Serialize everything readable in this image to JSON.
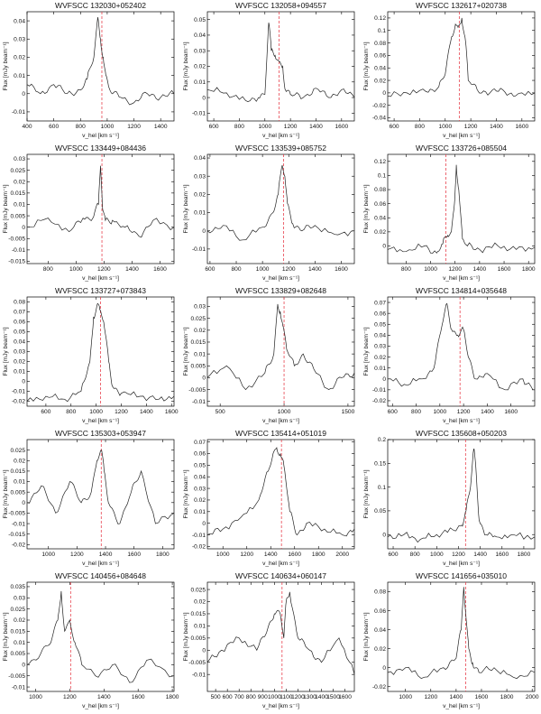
{
  "figure": {
    "ylabel": "Flux [mJy beam⁻¹]",
    "xlabel": "v_hel [km s⁻¹]"
  },
  "chart_data": [
    {
      "type": "line",
      "title": "WVFSCC 132030+052402",
      "xlim": [
        400,
        1500
      ],
      "ylim": [
        -0.015,
        0.045
      ],
      "xticks": [
        400,
        600,
        800,
        1000,
        1200,
        1400
      ],
      "yticks": [
        -0.01,
        0,
        0.01,
        0.02,
        0.03,
        0.04
      ],
      "ytick_labels": [
        "-0.01",
        "0",
        "0.01",
        "0.02",
        "0.03",
        "0.04"
      ],
      "vline": 960,
      "x": [
        400,
        500,
        600,
        700,
        800,
        850,
        900,
        930,
        950,
        970,
        990,
        1010,
        1040,
        1100,
        1200,
        1300,
        1400,
        1500
      ],
      "y": [
        0.005,
        0,
        0.005,
        0,
        0.002,
        0.008,
        0.02,
        0.042,
        0.03,
        0.02,
        0.01,
        0.004,
        0,
        -0.002,
        -0.005,
        0,
        -0.002,
        0
      ]
    },
    {
      "type": "line",
      "title": "WVFSCC 132058+094557",
      "xlim": [
        550,
        1700
      ],
      "ylim": [
        -0.015,
        0.055
      ],
      "xticks": [
        600,
        800,
        1000,
        1200,
        1400,
        1600
      ],
      "yticks": [
        -0.01,
        0,
        0.01,
        0.02,
        0.03,
        0.04,
        0.05
      ],
      "ytick_labels": [
        "-0.01",
        "0",
        "0.01",
        "0.02",
        "0.03",
        "0.04",
        "0.05"
      ],
      "vline": 1110,
      "x": [
        550,
        700,
        850,
        950,
        1000,
        1030,
        1050,
        1080,
        1110,
        1140,
        1160,
        1200,
        1300,
        1400,
        1500,
        1600,
        1700
      ],
      "y": [
        0.005,
        0.003,
        -0.002,
        0,
        0.002,
        0.048,
        0.03,
        0.027,
        0.023,
        0.02,
        0.005,
        0.002,
        0,
        0.006,
        0,
        0.005,
        0
      ]
    },
    {
      "type": "line",
      "title": "WVFSCC 132617+020738",
      "xlim": [
        550,
        1700
      ],
      "ylim": [
        -0.045,
        0.13
      ],
      "xticks": [
        600,
        800,
        1000,
        1200,
        1400,
        1600
      ],
      "yticks": [
        -0.04,
        -0.02,
        0,
        0.02,
        0.04,
        0.06,
        0.08,
        0.1,
        0.12
      ],
      "ytick_labels": [
        "-0.04",
        "-0.02",
        "0",
        "0.02",
        "0.04",
        "0.06",
        "0.08",
        "0.1",
        "0.12"
      ],
      "vline": 1110,
      "x": [
        550,
        700,
        850,
        950,
        1000,
        1050,
        1080,
        1100,
        1130,
        1160,
        1180,
        1250,
        1350,
        1450,
        1550,
        1700
      ],
      "y": [
        -0.005,
        0,
        0.002,
        0.01,
        0.03,
        0.09,
        0.11,
        0.105,
        0.12,
        0.08,
        0.02,
        0.005,
        0,
        0.005,
        -0.005,
        0
      ]
    },
    {
      "type": "line",
      "title": "WVFSCC 133449+084436",
      "xlim": [
        650,
        1700
      ],
      "ylim": [
        -0.016,
        0.032
      ],
      "xticks": [
        800,
        1000,
        1200,
        1400,
        1600
      ],
      "yticks": [
        -0.015,
        -0.01,
        -0.005,
        0,
        0.005,
        0.01,
        0.015,
        0.02,
        0.025,
        0.03
      ],
      "ytick_labels": [
        "-0.015",
        "-0.01",
        "-0.005",
        "0",
        "0.005",
        "0.01",
        "0.015",
        "0.02",
        "0.025",
        "0.03"
      ],
      "vline": 1185,
      "x": [
        650,
        800,
        950,
        1050,
        1120,
        1160,
        1175,
        1190,
        1210,
        1260,
        1350,
        1450,
        1550,
        1700
      ],
      "y": [
        0,
        0.004,
        -0.002,
        0.004,
        0.004,
        0.01,
        0.027,
        0.008,
        0.003,
        0.003,
        0,
        -0.004,
        0.003,
        0
      ]
    },
    {
      "type": "line",
      "title": "WVFSCC 133539+085752",
      "xlim": [
        580,
        1700
      ],
      "ylim": [
        -0.018,
        0.042
      ],
      "xticks": [
        600,
        800,
        1000,
        1200,
        1400,
        1600
      ],
      "yticks": [
        -0.01,
        0,
        0.01,
        0.02,
        0.03,
        0.04
      ],
      "ytick_labels": [
        "-0.01",
        "0",
        "0.01",
        "0.02",
        "0.03",
        "0.04"
      ],
      "vline": 1160,
      "x": [
        580,
        700,
        850,
        1000,
        1080,
        1120,
        1150,
        1170,
        1190,
        1230,
        1300,
        1400,
        1550,
        1700
      ],
      "y": [
        0,
        0.003,
        -0.005,
        0.002,
        0.01,
        0.02,
        0.036,
        0.03,
        0.015,
        0.004,
        0,
        0.003,
        -0.002,
        0
      ]
    },
    {
      "type": "line",
      "title": "WVFSCC 133726+085504",
      "xlim": [
        650,
        1850
      ],
      "ylim": [
        -0.025,
        0.13
      ],
      "xticks": [
        800,
        1000,
        1200,
        1400,
        1600,
        1800
      ],
      "yticks": [
        0,
        0.02,
        0.04,
        0.06,
        0.08,
        0.1,
        0.12
      ],
      "ytick_labels": [
        "0",
        "0.02",
        "0.04",
        "0.06",
        "0.08",
        "0.1",
        "0.12"
      ],
      "vline": 1125,
      "x": [
        650,
        800,
        950,
        1050,
        1100,
        1140,
        1170,
        1195,
        1210,
        1230,
        1260,
        1300,
        1400,
        1550,
        1700,
        1850
      ],
      "y": [
        -0.005,
        -0.008,
        0,
        -0.01,
        0.003,
        0.015,
        0.02,
        0.06,
        0.115,
        0.08,
        0.01,
        0,
        -0.005,
        0,
        -0.005,
        -0.002
      ]
    },
    {
      "type": "line",
      "title": "WVFSCC 133727+073843",
      "xlim": [
        450,
        1620
      ],
      "ylim": [
        -0.025,
        0.085
      ],
      "xticks": [
        600,
        800,
        1000,
        1200,
        1400,
        1600
      ],
      "yticks": [
        -0.02,
        -0.01,
        0,
        0.01,
        0.02,
        0.03,
        0.04,
        0.05,
        0.06,
        0.07,
        0.08
      ],
      "ytick_labels": [
        "-0.02",
        "-0.01",
        "0",
        "0.01",
        "0.02",
        "0.03",
        "0.04",
        "0.05",
        "0.06",
        "0.07",
        "0.08"
      ],
      "vline": 1035,
      "x": [
        450,
        600,
        750,
        880,
        950,
        980,
        1010,
        1030,
        1060,
        1100,
        1130,
        1200,
        1350,
        1500,
        1620
      ],
      "y": [
        -0.02,
        -0.015,
        -0.018,
        -0.01,
        0.02,
        0.065,
        0.078,
        0.072,
        0.06,
        0.02,
        -0.005,
        -0.012,
        -0.015,
        -0.018,
        -0.015
      ]
    },
    {
      "type": "line",
      "title": "WVFSCC 133829+082648",
      "xlim": [
        400,
        1550
      ],
      "ylim": [
        -0.012,
        0.034
      ],
      "xticks": [
        500,
        1000,
        1500
      ],
      "yticks": [
        -0.01,
        -0.005,
        0,
        0.005,
        0.01,
        0.015,
        0.02,
        0.025,
        0.03
      ],
      "ytick_labels": [
        "-0.01",
        "-0.005",
        "0",
        "0.005",
        "0.01",
        "0.015",
        "0.02",
        "0.025",
        "0.03"
      ],
      "vline": 1000,
      "x": [
        400,
        550,
        700,
        850,
        920,
        950,
        970,
        990,
        1020,
        1080,
        1150,
        1250,
        1350,
        1450,
        1550
      ],
      "y": [
        0,
        0.005,
        -0.005,
        0.002,
        0.01,
        0.031,
        0.028,
        0.022,
        0.012,
        0.005,
        0.01,
        0.002,
        -0.005,
        0,
        0.002
      ]
    },
    {
      "type": "line",
      "title": "WVFSCC 134814+035648",
      "xlim": [
        560,
        1800
      ],
      "ylim": [
        -0.025,
        0.075
      ],
      "xticks": [
        600,
        800,
        1000,
        1200,
        1400,
        1600
      ],
      "yticks": [
        -0.02,
        -0.01,
        0,
        0.01,
        0.02,
        0.03,
        0.04,
        0.05,
        0.06,
        0.07
      ],
      "ytick_labels": [
        "-0.02",
        "-0.01",
        "0",
        "0.01",
        "0.02",
        "0.03",
        "0.04",
        "0.05",
        "0.06",
        "0.07"
      ],
      "vline": 1170,
      "x": [
        560,
        700,
        850,
        950,
        1020,
        1060,
        1100,
        1150,
        1200,
        1240,
        1300,
        1400,
        1550,
        1700,
        1800
      ],
      "y": [
        0,
        -0.005,
        0,
        0.01,
        0.05,
        0.069,
        0.045,
        0.04,
        0.045,
        0.02,
        0,
        0.005,
        -0.01,
        0,
        -0.01
      ]
    },
    {
      "type": "line",
      "title": "WVFSCC 135303+053947",
      "xlim": [
        850,
        1880
      ],
      "ylim": [
        -0.022,
        0.03
      ],
      "xticks": [
        1000,
        1200,
        1400,
        1600,
        1800
      ],
      "yticks": [
        -0.02,
        -0.015,
        -0.01,
        -0.005,
        0,
        0.005,
        0.01,
        0.015,
        0.02,
        0.025
      ],
      "ytick_labels": [
        "-0.02",
        "-0.015",
        "-0.01",
        "-0.005",
        "0",
        "0.005",
        "0.01",
        "0.015",
        "0.02",
        "0.025"
      ],
      "vline": 1370,
      "x": [
        850,
        950,
        1050,
        1150,
        1230,
        1300,
        1340,
        1370,
        1390,
        1420,
        1500,
        1580,
        1650,
        1750,
        1880
      ],
      "y": [
        0,
        0.008,
        -0.005,
        0.01,
        0,
        0.005,
        0.02,
        0.025,
        0.015,
        0,
        -0.01,
        0.005,
        0.015,
        -0.01,
        -0.005
      ]
    },
    {
      "type": "line",
      "title": "WVFSCC 135414+051019",
      "xlim": [
        870,
        2100
      ],
      "ylim": [
        -0.022,
        0.072
      ],
      "xticks": [
        1000,
        1200,
        1400,
        1600,
        1800,
        2000
      ],
      "yticks": [
        -0.02,
        -0.01,
        0,
        0.01,
        0.02,
        0.03,
        0.04,
        0.05,
        0.06,
        0.07
      ],
      "ytick_labels": [
        "-0.02",
        "-0.01",
        "0",
        "0.01",
        "0.02",
        "0.03",
        "0.04",
        "0.05",
        "0.06",
        "0.07"
      ],
      "vline": 1490,
      "x": [
        870,
        1000,
        1150,
        1300,
        1380,
        1420,
        1450,
        1480,
        1510,
        1560,
        1620,
        1700,
        1850,
        2000,
        2100
      ],
      "y": [
        -0.01,
        -0.005,
        0.005,
        0.02,
        0.045,
        0.06,
        0.065,
        0.06,
        0.05,
        0.01,
        -0.01,
        0,
        -0.005,
        -0.01,
        -0.005
      ]
    },
    {
      "type": "line",
      "title": "WVFSCC 135608+050203",
      "xlim": [
        550,
        1900
      ],
      "ylim": [
        -0.03,
        0.2
      ],
      "xticks": [
        600,
        800,
        1000,
        1200,
        1400,
        1600,
        1800
      ],
      "yticks": [
        0,
        0.05,
        0.1,
        0.15,
        0.2
      ],
      "ytick_labels": [
        "0",
        "0.05",
        "0.1",
        "0.15",
        "0.2"
      ],
      "vline": 1265,
      "x": [
        550,
        700,
        850,
        1000,
        1150,
        1230,
        1270,
        1310,
        1340,
        1360,
        1390,
        1450,
        1550,
        1700,
        1900
      ],
      "y": [
        -0.005,
        0,
        -0.01,
        0,
        0.01,
        0.02,
        0.05,
        0.1,
        0.18,
        0.14,
        0.03,
        0,
        -0.005,
        0,
        -0.005
      ]
    },
    {
      "type": "line",
      "title": "WVFSCC 140456+084648",
      "xlim": [
        950,
        1810
      ],
      "ylim": [
        -0.012,
        0.037
      ],
      "xticks": [
        1000,
        1200,
        1400,
        1600,
        1800
      ],
      "yticks": [
        -0.01,
        -0.005,
        0,
        0.005,
        0.01,
        0.015,
        0.02,
        0.025,
        0.03,
        0.035
      ],
      "ytick_labels": [
        "-0.01",
        "-0.005",
        "0",
        "0.005",
        "0.01",
        "0.015",
        "0.02",
        "0.025",
        "0.03",
        "0.035"
      ],
      "vline": 1205,
      "x": [
        950,
        1030,
        1090,
        1130,
        1150,
        1170,
        1200,
        1230,
        1270,
        1350,
        1450,
        1550,
        1650,
        1810
      ],
      "y": [
        0,
        0.005,
        0.01,
        0.02,
        0.033,
        0.015,
        0.02,
        0.01,
        0,
        -0.005,
        0,
        -0.008,
        0.002,
        -0.005
      ]
    },
    {
      "type": "line",
      "title": "WVFSCC 140634+060147",
      "xlim": [
        430,
        1680
      ],
      "ylim": [
        -0.017,
        0.028
      ],
      "xticks": [
        500,
        600,
        700,
        800,
        900,
        1000,
        1100,
        1200,
        1300,
        1400,
        1500,
        1600
      ],
      "yticks": [
        -0.01,
        -0.005,
        0,
        0.005,
        0.01,
        0.015,
        0.02,
        0.025
      ],
      "ytick_labels": [
        "-0.01",
        "-0.005",
        "0",
        "0.005",
        "0.01",
        "0.015",
        "0.02",
        "0.025"
      ],
      "vline": 1065,
      "x": [
        430,
        550,
        700,
        850,
        950,
        1000,
        1050,
        1080,
        1100,
        1130,
        1200,
        1300,
        1400,
        1550,
        1680
      ],
      "y": [
        -0.005,
        0,
        0.005,
        0,
        0.01,
        0.015,
        0.015,
        0.005,
        0.02,
        0.024,
        0.005,
        0,
        -0.005,
        0.005,
        -0.01
      ]
    },
    {
      "type": "line",
      "title": "WVFSCC 141656+035010",
      "xlim": [
        860,
        2020
      ],
      "ylim": [
        -0.025,
        0.09
      ],
      "xticks": [
        1000,
        1200,
        1400,
        1600,
        1800,
        2000
      ],
      "yticks": [
        -0.02,
        0,
        0.02,
        0.04,
        0.06,
        0.08
      ],
      "ytick_labels": [
        "-0.02",
        "0",
        "0.02",
        "0.04",
        "0.06",
        "0.08"
      ],
      "vline": 1475,
      "x": [
        860,
        1000,
        1150,
        1300,
        1400,
        1440,
        1460,
        1480,
        1500,
        1530,
        1580,
        1700,
        1850,
        2020
      ],
      "y": [
        -0.005,
        0,
        -0.01,
        0,
        0.01,
        0.04,
        0.085,
        0.05,
        0.02,
        0.005,
        -0.005,
        0,
        -0.01,
        -0.005
      ]
    }
  ]
}
